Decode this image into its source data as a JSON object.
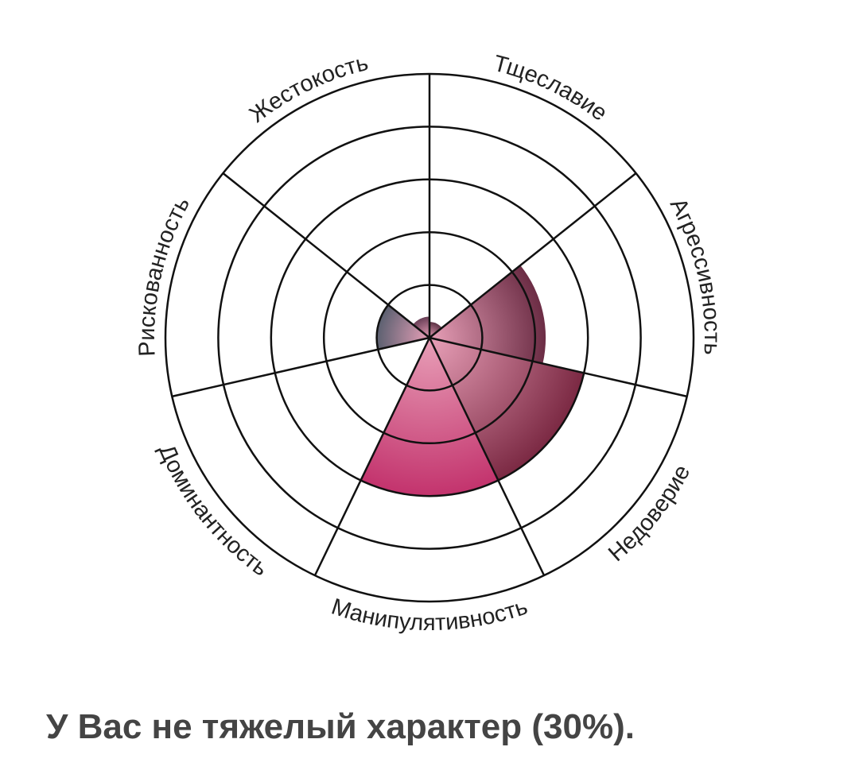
{
  "chart_data": {
    "type": "polar-area",
    "categories": [
      "Тщеславие",
      "Агрессивность",
      "Недоверие",
      "Манипулятивность",
      "Доминантность",
      "Рискованность",
      "Жестокость"
    ],
    "values": [
      0.3,
      2.2,
      3,
      3,
      0,
      1,
      0.4
    ],
    "colors": [
      "#5e3346",
      "#6c2d45",
      "#7b2943",
      "#c3336d",
      "#b02a5a",
      "#5b6070",
      "#6a3f57"
    ],
    "rlim": [
      0,
      5
    ],
    "rticks": [
      1,
      2,
      3,
      4,
      5
    ],
    "grid": true
  },
  "caption": "У Вас не тяжелый характер (30%)."
}
